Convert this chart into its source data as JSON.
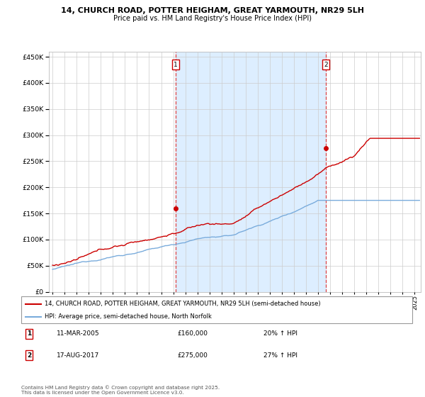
{
  "title1": "14, CHURCH ROAD, POTTER HEIGHAM, GREAT YARMOUTH, NR29 5LH",
  "title2": "Price paid vs. HM Land Registry's House Price Index (HPI)",
  "background_color": "#ffffff",
  "plot_bg_color": "#ffffff",
  "grid_color": "#cccccc",
  "red_line_color": "#cc0000",
  "blue_line_color": "#7aacdc",
  "vline_color": "#dd4444",
  "fill_color": "#ddeeff",
  "marker1_x": 2005.2,
  "marker1_label": "1",
  "marker2_x": 2017.65,
  "marker2_label": "2",
  "legend_line1": "14, CHURCH ROAD, POTTER HEIGHAM, GREAT YARMOUTH, NR29 5LH (semi-detached house)",
  "legend_line2": "HPI: Average price, semi-detached house, North Norfolk",
  "annotation1_date": "11-MAR-2005",
  "annotation1_price": "£160,000",
  "annotation1_hpi": "20% ↑ HPI",
  "annotation2_date": "17-AUG-2017",
  "annotation2_price": "£275,000",
  "annotation2_hpi": "27% ↑ HPI",
  "footer": "Contains HM Land Registry data © Crown copyright and database right 2025.\nThis data is licensed under the Open Government Licence v3.0.",
  "ylim": [
    0,
    460000
  ],
  "xlim": [
    1994.7,
    2025.5
  ],
  "yticks": [
    0,
    50000,
    100000,
    150000,
    200000,
    250000,
    300000,
    350000,
    400000,
    450000
  ],
  "xticks": [
    1995,
    1996,
    1997,
    1998,
    1999,
    2000,
    2001,
    2002,
    2003,
    2004,
    2005,
    2006,
    2007,
    2008,
    2009,
    2010,
    2011,
    2012,
    2013,
    2014,
    2015,
    2016,
    2017,
    2018,
    2019,
    2020,
    2021,
    2022,
    2023,
    2024,
    2025
  ]
}
